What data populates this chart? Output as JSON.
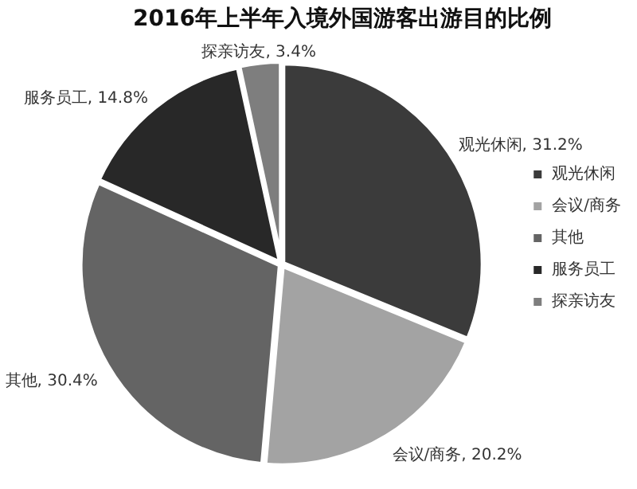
{
  "chart_data": {
    "type": "pie",
    "title": "2016年上半年入境外国游客出游目的比例",
    "categories": [
      "观光休闲",
      "会议/商务",
      "其他",
      "服务员工",
      "探亲访友"
    ],
    "values": [
      31.2,
      20.2,
      30.4,
      14.8,
      3.4
    ],
    "value_labels": [
      ", 31.2%",
      ", 20.2%",
      ", 30.4%",
      ", 14.8%",
      ", 3.4%"
    ],
    "colors": [
      "#3b3b3b",
      "#a3a3a3",
      "#646464",
      "#282828",
      "#7e7e7e"
    ],
    "legend": "right"
  }
}
